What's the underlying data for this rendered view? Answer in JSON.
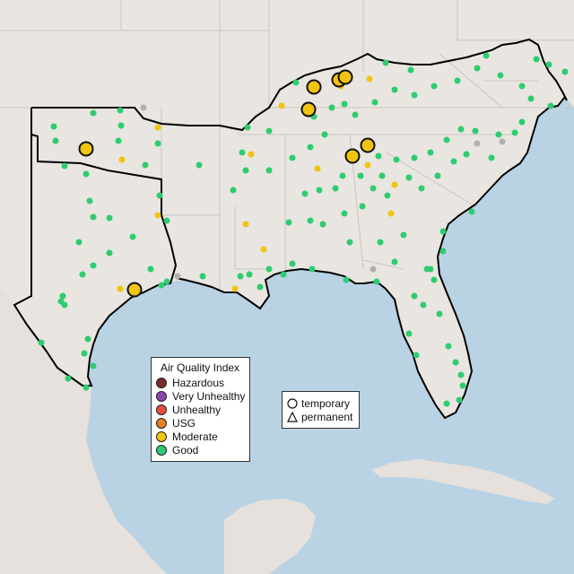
{
  "map": {
    "colors": {
      "water": "#b9d3e4",
      "land": "#e9e5e0",
      "region_outline": "#000000",
      "state_border": "#c9c5c0",
      "good": "#2ecc71",
      "moderate": "#f1c40f",
      "usg": "#e67e22",
      "unhealthy": "#e74c3c",
      "very_unhealthy": "#8e44ad",
      "hazardous": "#7b2a2a",
      "inactive": "#b0b0b0"
    },
    "highlighted_sites_count": 8
  },
  "aqi_legend": {
    "title": "Air Quality Index",
    "items": [
      {
        "label": "Hazardous",
        "color": "#7b2a2a"
      },
      {
        "label": "Very Unhealthy",
        "color": "#8e44ad"
      },
      {
        "label": "Unhealthy",
        "color": "#e74c3c"
      },
      {
        "label": "USG",
        "color": "#e67e22"
      },
      {
        "label": "Moderate",
        "color": "#f1c40f"
      },
      {
        "label": "Good",
        "color": "#2ecc71"
      }
    ]
  },
  "shape_legend": {
    "items": [
      {
        "label": "temporary",
        "icon": "circle-outline-icon"
      },
      {
        "label": "permanent",
        "icon": "triangle-outline-icon"
      }
    ]
  }
}
